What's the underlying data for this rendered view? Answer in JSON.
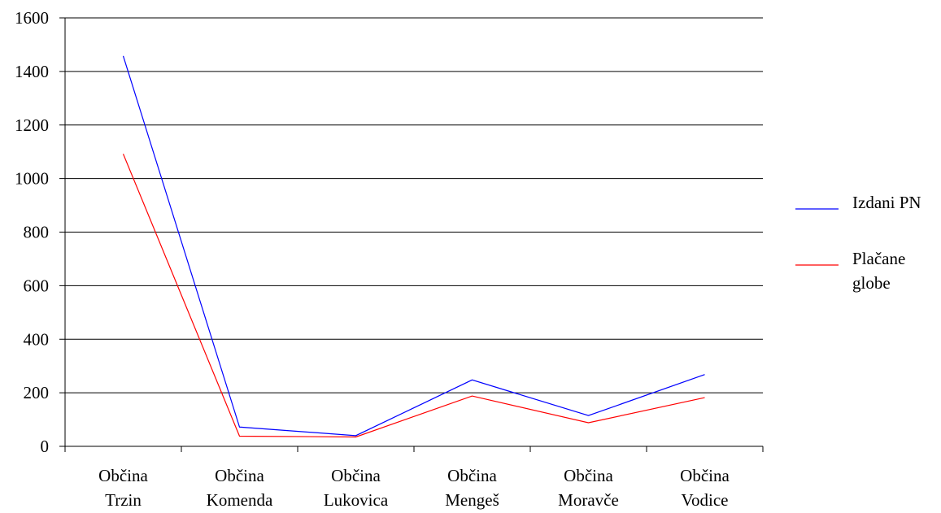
{
  "chart_data": {
    "type": "line",
    "categories": [
      [
        "Občina",
        "Trzin"
      ],
      [
        "Občina",
        "Komenda"
      ],
      [
        "Občina",
        "Lukovica"
      ],
      [
        "Občina",
        "Mengeš"
      ],
      [
        "Občina",
        "Moravče"
      ],
      [
        "Občina",
        "Vodice"
      ]
    ],
    "series": [
      {
        "name": "Izdani PN",
        "color": "#0000ff",
        "values": [
          1458,
          72,
          40,
          248,
          115,
          268
        ]
      },
      {
        "name": [
          "Plačane",
          "globe"
        ],
        "color": "#ff0000",
        "values": [
          1092,
          38,
          35,
          188,
          88,
          182
        ]
      }
    ],
    "ylim": [
      0,
      1600
    ],
    "yticks": [
      "0",
      "200",
      "400",
      "600",
      "800",
      "1000",
      "1200",
      "1400",
      "1600"
    ],
    "grid": true,
    "legend_position": "right",
    "title": "",
    "xlabel": "",
    "ylabel": ""
  }
}
